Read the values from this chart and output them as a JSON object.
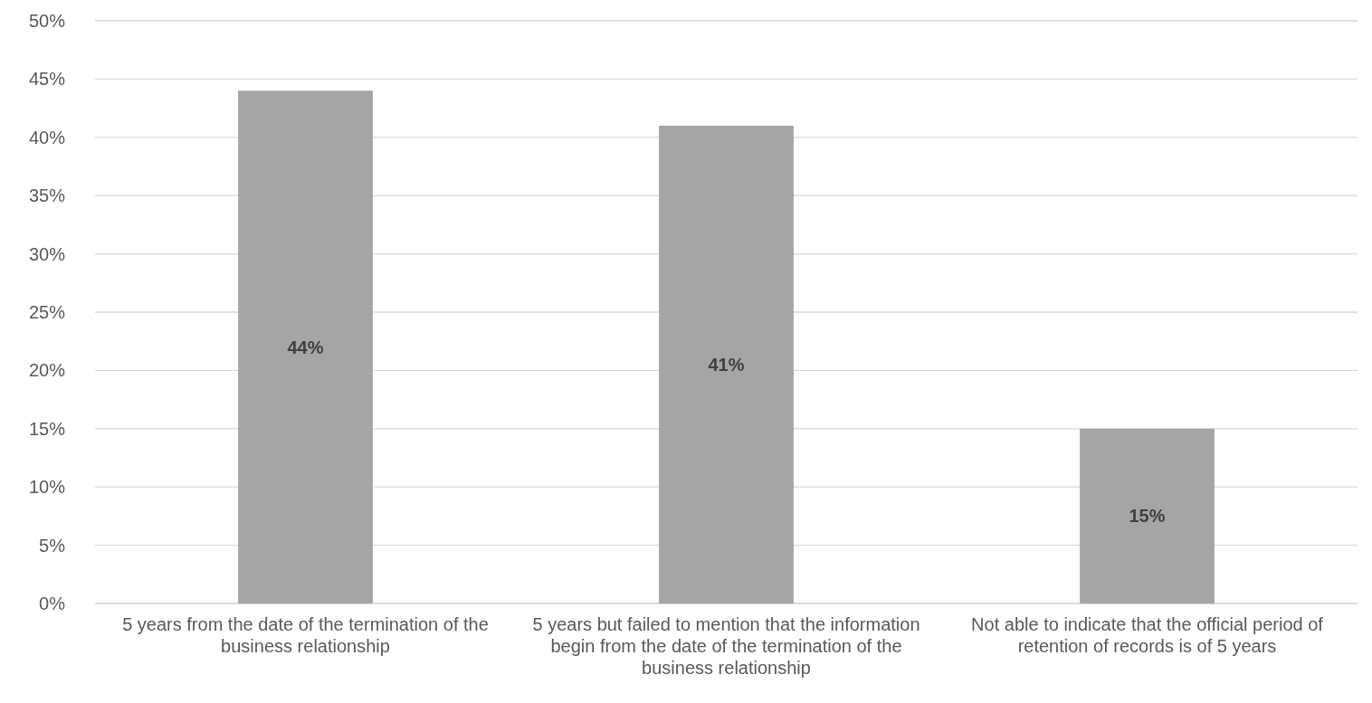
{
  "chart_data": {
    "type": "bar",
    "categories": [
      "5 years from the date of the termination of the business relationship",
      "5 years but failed to mention that the information begin from the date of the termination of the business relationship",
      "Not able to indicate that the official period of retention of records is of 5 years"
    ],
    "values": [
      44,
      41,
      15
    ],
    "value_labels": [
      "44%",
      "41%",
      "15%"
    ],
    "color": "#a5a5a5",
    "ylim": [
      0,
      50
    ],
    "yticks": [
      {
        "value": 0,
        "label": "0%"
      },
      {
        "value": 5,
        "label": "5%"
      },
      {
        "value": 10,
        "label": "10%"
      },
      {
        "value": 15,
        "label": "15%"
      },
      {
        "value": 20,
        "label": "20%"
      },
      {
        "value": 25,
        "label": "25%"
      },
      {
        "value": 30,
        "label": "30%"
      },
      {
        "value": 35,
        "label": "35%"
      },
      {
        "value": 40,
        "label": "40%"
      },
      {
        "value": 45,
        "label": "45%"
      },
      {
        "value": 50,
        "label": "50%"
      }
    ],
    "grid": "y"
  }
}
